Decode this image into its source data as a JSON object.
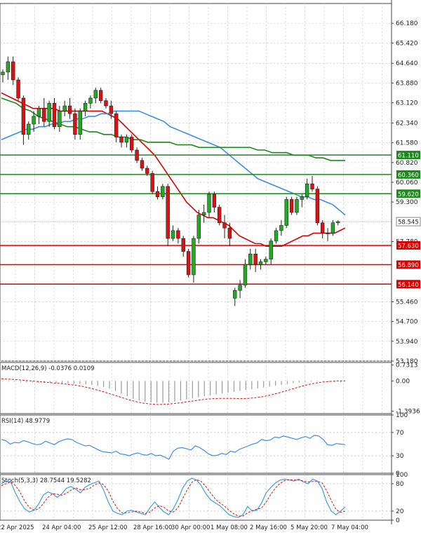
{
  "chart_data": {
    "type": "candlestick",
    "panels": [
      {
        "name": "price",
        "ylim": [
          53.18,
          66.94
        ],
        "y_ticks": [
          "66.180",
          "65.420",
          "64.640",
          "63.880",
          "63.120",
          "62.340",
          "61.580",
          "60.820",
          "60.060",
          "59.300",
          "57.780",
          "55.460",
          "54.700",
          "53.940",
          "53.180"
        ],
        "x_labels": [
          "22 Apr 2025",
          "24 Apr 04:00",
          "25 Apr 12:00",
          "28 Apr 16:00",
          "30 Apr 00:00",
          "1 May 08:00",
          "2 May 16:00",
          "5 May 20:00",
          "7 May 04:00"
        ],
        "candles": [
          {
            "o": 64.2,
            "h": 64.4,
            "l": 63.9,
            "c": 64.3
          },
          {
            "o": 64.3,
            "h": 64.9,
            "l": 64.0,
            "c": 64.7
          },
          {
            "o": 64.7,
            "h": 64.9,
            "l": 63.8,
            "c": 64.0
          },
          {
            "o": 64.0,
            "h": 64.1,
            "l": 63.2,
            "c": 63.3
          },
          {
            "o": 63.3,
            "h": 63.4,
            "l": 61.5,
            "c": 61.9
          },
          {
            "o": 61.9,
            "h": 62.4,
            "l": 61.7,
            "c": 62.3
          },
          {
            "o": 62.3,
            "h": 62.8,
            "l": 62.0,
            "c": 62.6
          },
          {
            "o": 62.6,
            "h": 63.0,
            "l": 62.3,
            "c": 62.9
          },
          {
            "o": 62.9,
            "h": 63.3,
            "l": 62.2,
            "c": 62.4
          },
          {
            "o": 62.4,
            "h": 63.2,
            "l": 62.2,
            "c": 63.1
          },
          {
            "o": 63.1,
            "h": 63.3,
            "l": 62.1,
            "c": 62.2
          },
          {
            "o": 62.2,
            "h": 63.0,
            "l": 62.0,
            "c": 62.8
          },
          {
            "o": 62.8,
            "h": 63.2,
            "l": 62.6,
            "c": 63.0
          },
          {
            "o": 63.0,
            "h": 63.3,
            "l": 62.5,
            "c": 62.7
          },
          {
            "o": 62.7,
            "h": 62.9,
            "l": 61.7,
            "c": 61.9
          },
          {
            "o": 61.9,
            "h": 62.9,
            "l": 61.7,
            "c": 62.8
          },
          {
            "o": 62.8,
            "h": 63.2,
            "l": 62.6,
            "c": 63.1
          },
          {
            "o": 63.1,
            "h": 63.4,
            "l": 62.9,
            "c": 63.3
          },
          {
            "o": 63.3,
            "h": 63.7,
            "l": 63.1,
            "c": 63.6
          },
          {
            "o": 63.6,
            "h": 63.7,
            "l": 63.1,
            "c": 63.2
          },
          {
            "o": 63.2,
            "h": 63.3,
            "l": 62.9,
            "c": 63.0
          },
          {
            "o": 63.0,
            "h": 63.2,
            "l": 62.5,
            "c": 62.7
          },
          {
            "o": 62.7,
            "h": 62.8,
            "l": 61.6,
            "c": 61.8
          },
          {
            "o": 61.8,
            "h": 61.9,
            "l": 61.4,
            "c": 61.6
          },
          {
            "o": 61.6,
            "h": 61.9,
            "l": 61.4,
            "c": 61.8
          },
          {
            "o": 61.8,
            "h": 61.9,
            "l": 61.2,
            "c": 61.3
          },
          {
            "o": 61.3,
            "h": 61.4,
            "l": 60.8,
            "c": 60.9
          },
          {
            "o": 60.9,
            "h": 61.0,
            "l": 60.5,
            "c": 60.6
          },
          {
            "o": 60.6,
            "h": 60.7,
            "l": 60.3,
            "c": 60.4
          },
          {
            "o": 60.4,
            "h": 60.5,
            "l": 59.6,
            "c": 59.7
          },
          {
            "o": 59.7,
            "h": 59.9,
            "l": 59.4,
            "c": 59.5
          },
          {
            "o": 59.5,
            "h": 60.0,
            "l": 59.4,
            "c": 59.9
          },
          {
            "o": 59.9,
            "h": 60.0,
            "l": 57.6,
            "c": 57.9
          },
          {
            "o": 57.9,
            "h": 58.4,
            "l": 57.8,
            "c": 58.2
          },
          {
            "o": 58.2,
            "h": 58.3,
            "l": 57.7,
            "c": 57.9
          },
          {
            "o": 57.9,
            "h": 58.0,
            "l": 57.2,
            "c": 57.4
          },
          {
            "o": 57.4,
            "h": 57.5,
            "l": 56.4,
            "c": 56.5
          },
          {
            "o": 56.5,
            "h": 58.0,
            "l": 56.2,
            "c": 57.9
          },
          {
            "o": 57.9,
            "h": 59.0,
            "l": 57.7,
            "c": 58.8
          },
          {
            "o": 58.8,
            "h": 59.2,
            "l": 58.5,
            "c": 58.9
          },
          {
            "o": 58.9,
            "h": 59.7,
            "l": 58.7,
            "c": 59.6
          },
          {
            "o": 59.6,
            "h": 59.7,
            "l": 58.9,
            "c": 59.1
          },
          {
            "o": 59.1,
            "h": 59.2,
            "l": 58.4,
            "c": 58.5
          },
          {
            "o": 58.5,
            "h": 58.8,
            "l": 57.9,
            "c": 58.3
          },
          {
            "o": 58.3,
            "h": 58.5,
            "l": 57.6,
            "c": 57.9
          },
          {
            "o": 55.6,
            "h": 56.0,
            "l": 55.3,
            "c": 55.9
          },
          {
            "o": 55.9,
            "h": 56.3,
            "l": 55.6,
            "c": 56.1
          },
          {
            "o": 56.1,
            "h": 57.1,
            "l": 56.0,
            "c": 56.9
          },
          {
            "o": 56.9,
            "h": 57.5,
            "l": 56.7,
            "c": 57.3
          },
          {
            "o": 57.3,
            "h": 57.5,
            "l": 56.6,
            "c": 56.9
          },
          {
            "o": 56.9,
            "h": 57.1,
            "l": 56.7,
            "c": 57.0
          },
          {
            "o": 57.0,
            "h": 57.2,
            "l": 56.9,
            "c": 57.1
          },
          {
            "o": 57.1,
            "h": 57.9,
            "l": 56.9,
            "c": 57.8
          },
          {
            "o": 57.8,
            "h": 58.3,
            "l": 57.7,
            "c": 58.2
          },
          {
            "o": 58.2,
            "h": 58.6,
            "l": 58.0,
            "c": 58.4
          },
          {
            "o": 58.4,
            "h": 59.5,
            "l": 58.3,
            "c": 59.4
          },
          {
            "o": 59.4,
            "h": 59.5,
            "l": 58.8,
            "c": 58.9
          },
          {
            "o": 58.9,
            "h": 59.5,
            "l": 58.8,
            "c": 59.4
          },
          {
            "o": 59.4,
            "h": 59.6,
            "l": 59.1,
            "c": 59.5
          },
          {
            "o": 59.5,
            "h": 60.2,
            "l": 59.4,
            "c": 60.0
          },
          {
            "o": 60.0,
            "h": 60.3,
            "l": 59.7,
            "c": 59.8
          },
          {
            "o": 59.8,
            "h": 59.9,
            "l": 58.4,
            "c": 58.5
          },
          {
            "o": 58.5,
            "h": 58.6,
            "l": 57.9,
            "c": 58.1
          },
          {
            "o": 58.1,
            "h": 58.3,
            "l": 57.8,
            "c": 58.1
          },
          {
            "o": 58.1,
            "h": 58.6,
            "l": 58.0,
            "c": 58.5
          },
          {
            "o": 58.5,
            "h": 58.6,
            "l": 58.4,
            "c": 58.545
          }
        ],
        "overlays": [
          {
            "color": "#dd0000",
            "values": [
              63.5,
              63.4,
              63.3,
              63.2,
              63.1,
              63.0,
              62.9,
              62.9,
              62.9,
              62.9,
              62.9,
              62.8,
              62.8,
              62.8,
              62.8,
              62.8,
              62.8,
              62.8,
              62.8,
              62.8,
              62.7,
              62.6,
              62.5,
              62.3,
              62.1,
              61.9,
              61.7,
              61.5,
              61.3,
              61.1,
              60.8,
              60.5,
              60.2,
              59.9,
              59.6,
              59.3,
              59.1,
              58.9,
              58.8,
              58.7,
              58.7,
              58.6,
              58.5,
              58.4,
              58.2,
              58.0,
              57.9,
              57.8,
              57.7,
              57.7,
              57.6,
              57.6,
              57.6,
              57.6,
              57.7,
              57.8,
              57.9,
              58.0,
              58.0,
              58.1,
              58.1,
              58.1,
              58.1,
              58.1,
              58.2,
              58.3
            ]
          },
          {
            "color": "#3a8ee6",
            "values": [
              61.7,
              61.8,
              61.9,
              62.0,
              62.1,
              62.1,
              62.2,
              62.2,
              62.3,
              62.3,
              62.4,
              62.4,
              62.5,
              62.5,
              62.6,
              62.6,
              62.7,
              62.7,
              62.8,
              62.8,
              62.8,
              62.8,
              62.8,
              62.7,
              62.6,
              62.5,
              62.4,
              62.2,
              62.1,
              62.0,
              61.9,
              61.8,
              61.7,
              61.6,
              61.5,
              61.4,
              61.2,
              61.0,
              60.8,
              60.6,
              60.4,
              60.2,
              60.1,
              60.0,
              59.9,
              59.8,
              59.7,
              59.6,
              59.5,
              59.5,
              59.4,
              59.4,
              59.3,
              59.2,
              59.0,
              58.8
            ]
          },
          {
            "color": "#1a8a1a",
            "values": [
              63.3,
              63.2,
              63.1,
              62.9,
              62.8,
              62.6,
              62.5,
              62.4,
              62.3,
              62.2,
              62.2,
              62.1,
              62.0,
              62.0,
              61.9,
              61.9,
              61.8,
              61.8,
              61.7,
              61.7,
              61.6,
              61.6,
              61.6,
              61.6,
              61.5,
              61.5,
              61.5,
              61.4,
              61.4,
              61.4,
              61.4,
              61.4,
              61.4,
              61.4,
              61.4,
              61.3,
              61.3,
              61.2,
              61.2,
              61.2,
              61.1,
              61.1,
              61.1,
              61.0,
              61.0,
              60.9,
              60.9,
              60.9
            ]
          }
        ],
        "price_lines": [
          {
            "value": 61.11,
            "label": "61.110",
            "color": "#1a8a1a"
          },
          {
            "value": 60.36,
            "label": "60.360",
            "color": "#1a8a1a"
          },
          {
            "value": 59.62,
            "label": "59.620",
            "color": "#1a8a1a"
          },
          {
            "value": 57.63,
            "label": "57.630",
            "color": "#dd0000"
          },
          {
            "value": 56.89,
            "label": "56.890",
            "color": "#dd0000"
          },
          {
            "value": 56.14,
            "label": "56.140",
            "color": "#dd0000"
          }
        ],
        "current_price": {
          "value": 58.545,
          "label": "58.545"
        }
      },
      {
        "name": "macd",
        "title": "MACD(12,26,9) -0.0376 0.0109",
        "ylim": [
          -1.5,
          0.85
        ],
        "y_ticks": [
          "0.7313",
          "0.00",
          "-1.3936"
        ],
        "histogram": [
          -0.02,
          -0.03,
          -0.04,
          -0.05,
          -0.06,
          -0.07,
          -0.08,
          -0.09,
          -0.1,
          -0.1,
          -0.11,
          -0.12,
          -0.13,
          -0.14,
          -0.16,
          -0.18,
          -0.22,
          -0.28,
          -0.36,
          -0.46,
          -0.58,
          -0.7,
          -0.82,
          -0.9,
          -0.95,
          -0.98,
          -1.0,
          -1.0,
          -0.98,
          -0.95,
          -0.9,
          -0.85,
          -0.8,
          -0.75,
          -0.7,
          -0.66,
          -0.62,
          -0.58,
          -0.54,
          -0.5,
          -0.46,
          -0.42,
          -0.38,
          -0.34,
          -0.3,
          -0.26,
          -0.22,
          -0.18,
          -0.14,
          -0.1,
          -0.07,
          -0.05,
          -0.04,
          -0.03,
          -0.03,
          -0.04,
          -0.05,
          -0.05
        ],
        "signal": [
          0.1,
          0.08,
          0.06,
          0.03,
          0.0,
          -0.03,
          -0.06,
          -0.09,
          -0.12,
          -0.16,
          -0.2,
          -0.26,
          -0.34,
          -0.43,
          -0.53,
          -0.64,
          -0.75,
          -0.86,
          -0.95,
          -1.02,
          -1.06,
          -1.08,
          -1.07,
          -1.04,
          -1.0,
          -0.95,
          -0.9,
          -0.85,
          -0.82,
          -0.8,
          -0.8,
          -0.8,
          -0.81,
          -0.8,
          -0.77,
          -0.72,
          -0.65,
          -0.56,
          -0.46,
          -0.36,
          -0.26,
          -0.17,
          -0.1,
          -0.05,
          -0.02,
          0.0,
          0.0
        ]
      },
      {
        "name": "rsi",
        "title": "RSI(14) 48.9779",
        "ylim": [
          0,
          100
        ],
        "y_ticks": [
          "100",
          "70",
          "30",
          "0"
        ],
        "values": [
          58,
          56,
          50,
          53,
          52,
          56,
          54,
          51,
          49,
          50,
          55,
          52,
          49,
          54,
          57,
          59,
          58,
          53,
          50,
          47,
          48,
          44,
          40,
          37,
          36,
          35,
          38,
          33,
          32,
          30,
          33,
          35,
          32,
          31,
          34,
          30,
          31,
          28,
          24,
          38,
          43,
          44,
          42,
          40,
          47,
          44,
          39,
          33,
          30,
          31,
          34,
          32,
          38,
          36,
          41,
          44,
          47,
          50,
          52,
          58,
          56,
          57,
          62,
          61,
          64,
          62,
          60,
          58,
          61,
          63,
          60,
          65,
          64,
          58,
          49,
          48,
          51,
          50,
          49
        ]
      },
      {
        "name": "stoch",
        "title": "Stoch(5,3,3) 28.7544 19.5282",
        "ylim": [
          0,
          100
        ],
        "y_ticks": [
          "100",
          "80",
          "20",
          "0"
        ],
        "k": [
          80,
          86,
          84,
          60,
          40,
          25,
          18,
          22,
          35,
          55,
          62,
          58,
          50,
          58,
          70,
          74,
          68,
          60,
          72,
          78,
          82,
          86,
          66,
          40,
          20,
          15,
          12,
          20,
          22,
          18,
          15,
          12,
          28,
          40,
          28,
          18,
          12,
          25,
          45,
          70,
          86,
          92,
          88,
          76,
          58,
          45,
          38,
          32,
          22,
          12,
          8,
          6,
          12,
          30,
          20,
          22,
          38,
          60,
          72,
          82,
          88,
          90,
          88,
          86,
          90,
          84,
          80,
          90,
          86,
          70,
          40,
          20,
          12,
          20,
          29
        ],
        "d": [
          76,
          80,
          84,
          76,
          62,
          42,
          28,
          22,
          25,
          36,
          50,
          58,
          57,
          55,
          59,
          66,
          71,
          67,
          67,
          70,
          77,
          82,
          78,
          64,
          42,
          25,
          16,
          16,
          18,
          20,
          18,
          15,
          18,
          27,
          32,
          28,
          20,
          18,
          27,
          47,
          67,
          83,
          89,
          85,
          74,
          60,
          47,
          38,
          31,
          22,
          14,
          9,
          9,
          16,
          21,
          24,
          27,
          40,
          57,
          71,
          81,
          87,
          89,
          88,
          88,
          86,
          84,
          85,
          85,
          82,
          65,
          43,
          24,
          17,
          20
        ]
      }
    ]
  }
}
